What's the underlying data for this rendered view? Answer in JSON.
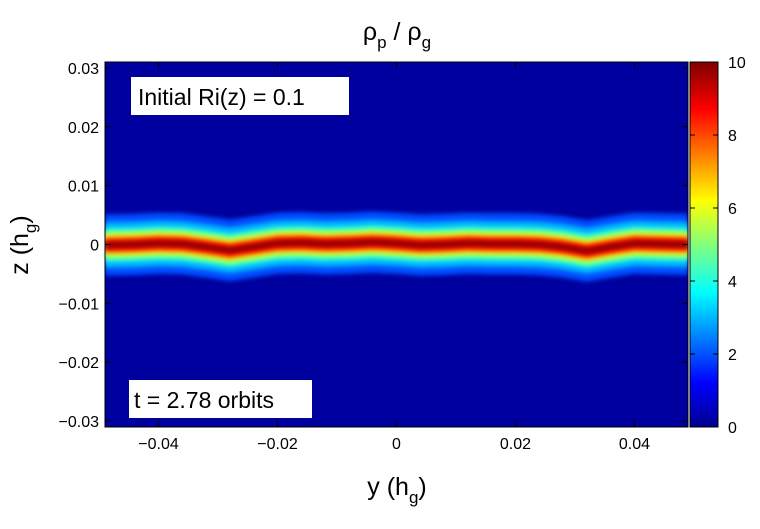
{
  "chart_data": {
    "type": "heatmap",
    "title": "ρ_p / ρ_g",
    "title_main": "ρ",
    "title_sub_p": "p",
    "title_sep": " / ",
    "title_tail": "ρ",
    "title_sub_g": "g",
    "xlabel": "y (h_g)",
    "xlabel_main": "y (h",
    "xlabel_sub": "g",
    "xlabel_close": ")",
    "ylabel": "z (h_g)",
    "ylabel_main": "z (h",
    "ylabel_sub": "g",
    "ylabel_close": ")",
    "xlim": [
      -0.049,
      0.049
    ],
    "ylim": [
      -0.031,
      0.031
    ],
    "xticks": [
      -0.04,
      -0.02,
      0,
      0.02,
      0.04
    ],
    "xtick_labels": [
      "−0.04",
      "−0.02",
      "0",
      "0.02",
      "0.04"
    ],
    "yticks": [
      0.03,
      0.02,
      0.01,
      0,
      -0.01,
      -0.02,
      -0.03
    ],
    "ytick_labels": [
      "0.03",
      "0.02",
      "0.01",
      "0",
      "−0.01",
      "−0.02",
      "−0.03"
    ],
    "colorbar": {
      "range": [
        0,
        10
      ],
      "ticks": [
        0,
        2,
        4,
        6,
        8,
        10
      ],
      "tick_labels": [
        "0",
        "2",
        "4",
        "6",
        "8",
        "10"
      ],
      "colormap": "jet"
    },
    "annotations": {
      "top_left": "Initial Ri(z) = 0.1",
      "bottom_left": "t = 2.78 orbits"
    },
    "layer": {
      "description_values": "dust-to-gas density ratio peaks near 10 in a thin midplane layer",
      "peak_value": 10,
      "background_value": 0.3,
      "centerline_z": [
        [
          -0.049,
          -0.0001
        ],
        [
          -0.044,
          0.0
        ],
        [
          -0.04,
          0.0002
        ],
        [
          -0.036,
          0.0001
        ],
        [
          -0.032,
          -0.0004
        ],
        [
          -0.028,
          -0.001
        ],
        [
          -0.024,
          -0.0004
        ],
        [
          -0.02,
          0.0002
        ],
        [
          -0.016,
          0.0003
        ],
        [
          -0.012,
          0.0001
        ],
        [
          -0.008,
          0.0002
        ],
        [
          -0.004,
          0.0004
        ],
        [
          0.0,
          0.0002
        ],
        [
          0.004,
          -0.0001
        ],
        [
          0.008,
          0.0
        ],
        [
          0.012,
          0.0002
        ],
        [
          0.016,
          0.0001
        ],
        [
          0.02,
          0.0001
        ],
        [
          0.024,
          0.0
        ],
        [
          0.028,
          -0.0004
        ],
        [
          0.032,
          -0.0011
        ],
        [
          0.036,
          -0.0004
        ],
        [
          0.04,
          0.0002
        ],
        [
          0.044,
          0.0001
        ],
        [
          0.049,
          0.0
        ]
      ],
      "core_halfwidth_z": 0.0011,
      "halo_halfwidth_z": 0.0052
    }
  },
  "colors": {
    "background_low": "#0a1ed8",
    "peak": "#8a0000",
    "annotation_box": "#ffffff",
    "text": "#000000"
  }
}
